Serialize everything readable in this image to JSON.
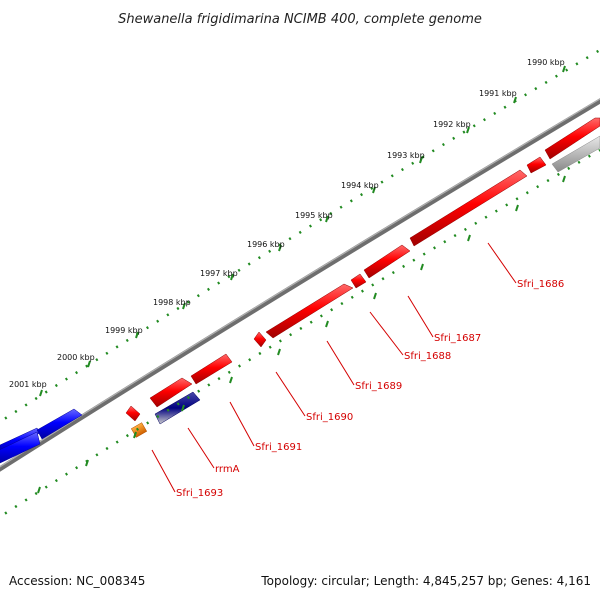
{
  "title": "Shewanella frigidimarina NCIMB 400, complete genome",
  "kbp_ticks": [
    "1990 kbp",
    "1991 kbp",
    "1992 kbp",
    "1993 kbp",
    "1994 kbp",
    "1995 kbp",
    "1996 kbp",
    "1997 kbp",
    "1998 kbp",
    "1999 kbp",
    "2000 kbp",
    "2001 kbp"
  ],
  "gene_labels": [
    "Sfri_1686",
    "Sfri_1687",
    "Sfri_1688",
    "Sfri_1689",
    "Sfri_1690",
    "Sfri_1691",
    "rrmA",
    "Sfri_1693"
  ],
  "footer": {
    "accession": "Accession: NC_008345",
    "topology": "Topology: circular; Length: 4,845,257 bp; Genes: 4,161"
  },
  "colors": {
    "forward_gene": "#ff0000",
    "reverse_gene": "#ff0000",
    "blue_gene": "#0000ff",
    "navy_gene": "#000080",
    "orange_gene": "#ff8c00",
    "grey_gene": "#aaaaaa",
    "backbone": "#808080",
    "ruler": "#228b22",
    "label": "#d40000"
  }
}
